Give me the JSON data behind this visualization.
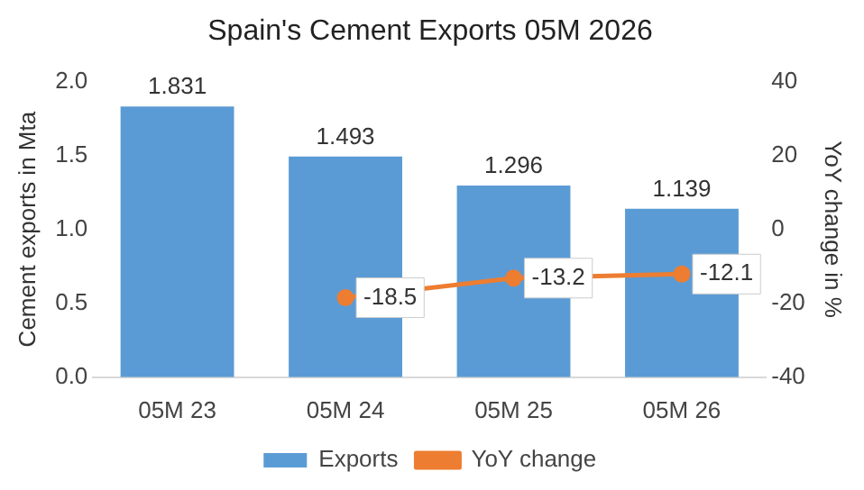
{
  "chart_data": {
    "type": "bar",
    "title": "Spain's Cement Exports 05M 2026",
    "ylabel": "Cement exports in Mta",
    "y2label": "YoY change in %",
    "categories": [
      "05M 23",
      "05M 24",
      "05M 25",
      "05M 26"
    ],
    "series": [
      {
        "name": "Exports",
        "color": "#5b9bd5",
        "values": [
          1.831,
          1.493,
          1.296,
          1.139
        ]
      },
      {
        "name": "YoY change",
        "type": "line",
        "axis": "y2",
        "color": "#ed7d31",
        "values": [
          null,
          -18.5,
          -13.2,
          -12.1
        ]
      }
    ],
    "ylim": [
      0,
      2
    ],
    "yticks": [
      {
        "value": 0,
        "label": "0.0"
      },
      {
        "value": 0.5,
        "label": "0.5"
      },
      {
        "value": 1,
        "label": "1.0"
      },
      {
        "value": 1.5,
        "label": "1.5"
      },
      {
        "value": 2,
        "label": "2.0"
      }
    ],
    "y2lim": [
      -40,
      40
    ],
    "y2ticks": [
      -40,
      -20,
      0,
      20,
      40
    ],
    "data_labels": true,
    "grid": false,
    "legend": "bottom",
    "marker": "circle"
  }
}
